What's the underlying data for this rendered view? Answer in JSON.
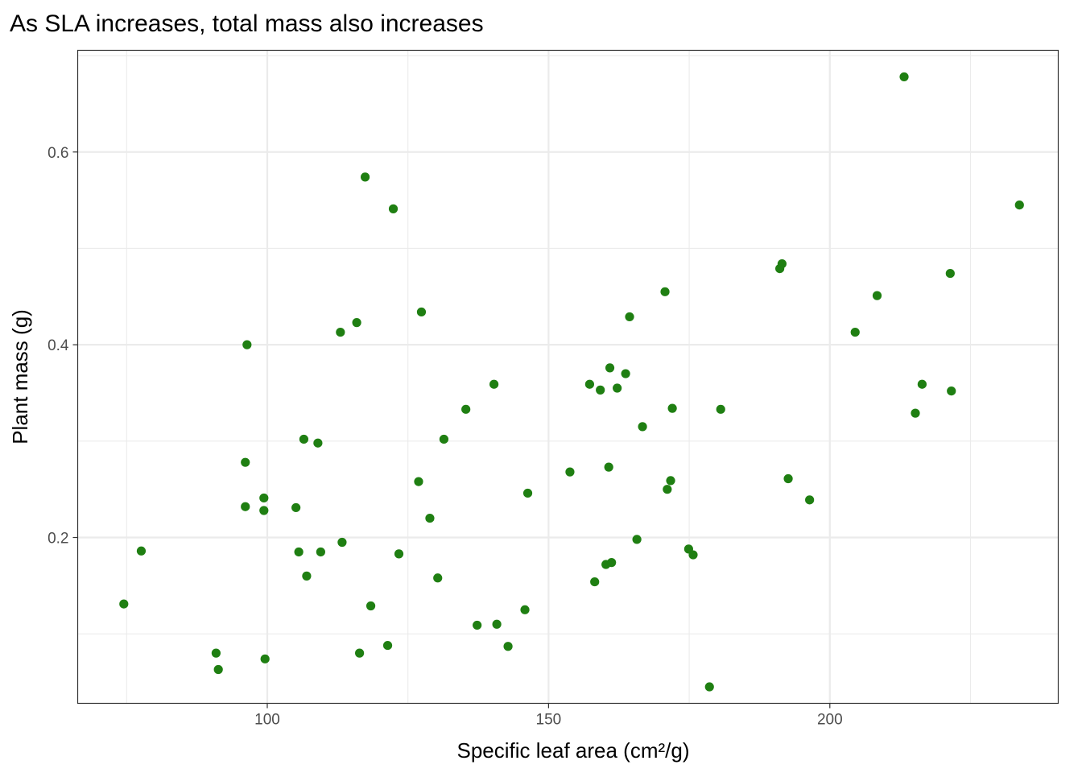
{
  "chart_data": {
    "type": "scatter",
    "title": "As SLA increases, total mass also increases",
    "xlabel": "Specific leaf area (cm²/g)",
    "ylabel": "Plant mass (g)",
    "xlim": [
      66.3,
      240.6
    ],
    "ylim": [
      0.0279,
      0.7055
    ],
    "x_ticks": [
      100,
      150,
      200
    ],
    "x_tick_labels": [
      "100",
      "150",
      "200"
    ],
    "x_minor_ticks": [
      75,
      125,
      175,
      225
    ],
    "y_ticks": [
      0.2,
      0.4,
      0.6
    ],
    "y_tick_labels": [
      "0.2",
      "0.4",
      "0.6"
    ],
    "y_minor_ticks": [
      0.1,
      0.3,
      0.5,
      0.7
    ],
    "grid": true,
    "legend": "none",
    "point_color": "#1f7f12",
    "points": [
      {
        "x": 74.5,
        "y": 0.131
      },
      {
        "x": 77.6,
        "y": 0.186
      },
      {
        "x": 90.9,
        "y": 0.08
      },
      {
        "x": 91.3,
        "y": 0.063
      },
      {
        "x": 96.1,
        "y": 0.278
      },
      {
        "x": 96.1,
        "y": 0.232
      },
      {
        "x": 96.4,
        "y": 0.4
      },
      {
        "x": 99.4,
        "y": 0.241
      },
      {
        "x": 99.4,
        "y": 0.228
      },
      {
        "x": 99.6,
        "y": 0.074
      },
      {
        "x": 105.1,
        "y": 0.231
      },
      {
        "x": 105.6,
        "y": 0.185
      },
      {
        "x": 106.5,
        "y": 0.302
      },
      {
        "x": 107.0,
        "y": 0.16
      },
      {
        "x": 109.0,
        "y": 0.298
      },
      {
        "x": 109.5,
        "y": 0.185
      },
      {
        "x": 113.0,
        "y": 0.413
      },
      {
        "x": 113.3,
        "y": 0.195
      },
      {
        "x": 115.9,
        "y": 0.423
      },
      {
        "x": 116.4,
        "y": 0.08
      },
      {
        "x": 117.4,
        "y": 0.574
      },
      {
        "x": 118.4,
        "y": 0.129
      },
      {
        "x": 121.4,
        "y": 0.088
      },
      {
        "x": 122.4,
        "y": 0.541
      },
      {
        "x": 123.4,
        "y": 0.183
      },
      {
        "x": 126.9,
        "y": 0.258
      },
      {
        "x": 127.4,
        "y": 0.434
      },
      {
        "x": 128.9,
        "y": 0.22
      },
      {
        "x": 130.3,
        "y": 0.158
      },
      {
        "x": 131.4,
        "y": 0.302
      },
      {
        "x": 135.3,
        "y": 0.333
      },
      {
        "x": 137.3,
        "y": 0.109
      },
      {
        "x": 140.3,
        "y": 0.359
      },
      {
        "x": 140.8,
        "y": 0.11
      },
      {
        "x": 142.8,
        "y": 0.087
      },
      {
        "x": 145.8,
        "y": 0.125
      },
      {
        "x": 146.3,
        "y": 0.246
      },
      {
        "x": 153.8,
        "y": 0.268
      },
      {
        "x": 157.3,
        "y": 0.359
      },
      {
        "x": 158.2,
        "y": 0.154
      },
      {
        "x": 159.2,
        "y": 0.353
      },
      {
        "x": 160.2,
        "y": 0.172
      },
      {
        "x": 160.7,
        "y": 0.273
      },
      {
        "x": 160.9,
        "y": 0.376
      },
      {
        "x": 161.2,
        "y": 0.174
      },
      {
        "x": 162.2,
        "y": 0.355
      },
      {
        "x": 163.7,
        "y": 0.37
      },
      {
        "x": 164.4,
        "y": 0.429
      },
      {
        "x": 165.7,
        "y": 0.198
      },
      {
        "x": 166.7,
        "y": 0.315
      },
      {
        "x": 170.7,
        "y": 0.455
      },
      {
        "x": 171.1,
        "y": 0.25
      },
      {
        "x": 171.7,
        "y": 0.259
      },
      {
        "x": 172.0,
        "y": 0.334
      },
      {
        "x": 174.9,
        "y": 0.188
      },
      {
        "x": 175.7,
        "y": 0.182
      },
      {
        "x": 178.6,
        "y": 0.045
      },
      {
        "x": 180.6,
        "y": 0.333
      },
      {
        "x": 191.1,
        "y": 0.479
      },
      {
        "x": 191.5,
        "y": 0.484
      },
      {
        "x": 192.6,
        "y": 0.261
      },
      {
        "x": 196.4,
        "y": 0.239
      },
      {
        "x": 204.5,
        "y": 0.413
      },
      {
        "x": 208.4,
        "y": 0.451
      },
      {
        "x": 213.2,
        "y": 0.678
      },
      {
        "x": 215.2,
        "y": 0.329
      },
      {
        "x": 216.4,
        "y": 0.359
      },
      {
        "x": 221.4,
        "y": 0.474
      },
      {
        "x": 221.6,
        "y": 0.352
      },
      {
        "x": 233.7,
        "y": 0.545
      }
    ]
  }
}
